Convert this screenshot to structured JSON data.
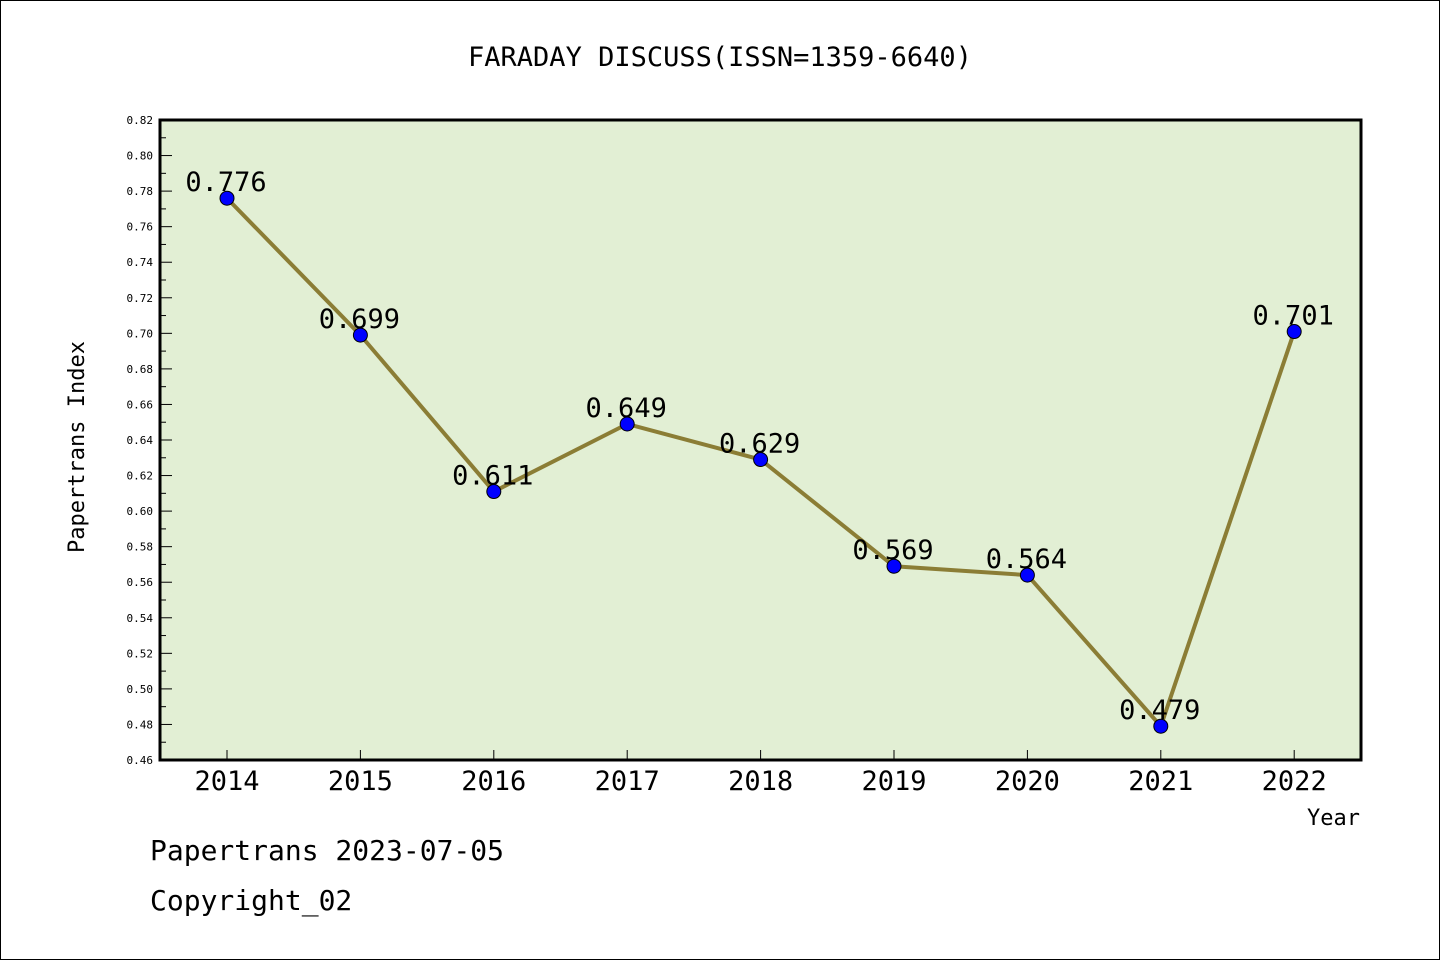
{
  "chart_data": {
    "type": "line",
    "title": "FARADAY DISCUSS(ISSN=1359-6640)",
    "xlabel": "Year",
    "ylabel": "Papertrans Index",
    "categories": [
      "2014",
      "2015",
      "2016",
      "2017",
      "2018",
      "2019",
      "2020",
      "2021",
      "2022"
    ],
    "values": [
      0.776,
      0.699,
      0.611,
      0.649,
      0.629,
      0.569,
      0.564,
      0.479,
      0.701
    ],
    "data_labels": [
      "0.776",
      "0.699",
      "0.611",
      "0.649",
      "0.629",
      "0.569",
      "0.564",
      "0.479",
      "0.701"
    ],
    "ylim": [
      0.46,
      0.82
    ],
    "yticks": [
      "0.46",
      "0.48",
      "0.50",
      "0.52",
      "0.54",
      "0.56",
      "0.58",
      "0.60",
      "0.62",
      "0.64",
      "0.66",
      "0.68",
      "0.70",
      "0.72",
      "0.74",
      "0.76",
      "0.78",
      "0.80",
      "0.82"
    ],
    "grid": false,
    "colors": {
      "plot_background": "#e2efd4",
      "line": "#8b7d35",
      "marker": "#0000ff"
    }
  },
  "footer": {
    "source": "Papertrans 2023-07-05",
    "copyright": "Copyright_02"
  }
}
